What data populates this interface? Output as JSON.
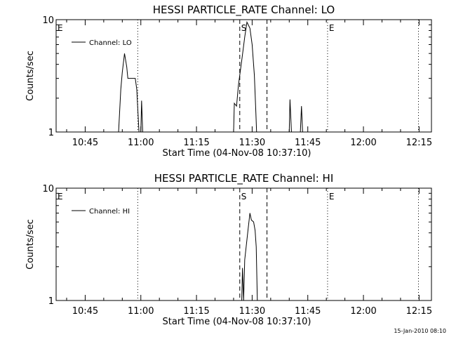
{
  "chart_data": [
    {
      "type": "line",
      "title": "HESSI PARTICLE_RATE Channel: LO",
      "xlabel": "Start Time (04-Nov-08 10:37:10)",
      "ylabel": "Counts/sec",
      "y_scale": "log",
      "ylim": [
        1,
        10
      ],
      "y_ticks": [
        "1",
        "10"
      ],
      "xlim": [
        "10:37:10",
        "12:18:20"
      ],
      "x_ticks": [
        "10:45",
        "11:00",
        "11:15",
        "11:30",
        "11:45",
        "12:00",
        "12:15"
      ],
      "grid": false,
      "legend": {
        "position": "top-left",
        "entries": [
          "Channel: LO"
        ]
      },
      "series": [
        {
          "name": "Channel: LO",
          "points": [
            [
              "10:37:10",
              1
            ],
            [
              "10:54:00",
              1
            ],
            [
              "10:54:36",
              2.4
            ],
            [
              "10:55:00",
              3.4
            ],
            [
              "10:55:36",
              5.0
            ],
            [
              "10:56:12",
              3.8
            ],
            [
              "10:56:30",
              3.0
            ],
            [
              "10:58:30",
              3.0
            ],
            [
              "10:58:54",
              2.4
            ],
            [
              "10:59:30",
              1
            ],
            [
              "11:00:00",
              1
            ],
            [
              "11:00:12",
              1.9
            ],
            [
              "11:00:30",
              1
            ],
            [
              "11:25:00",
              1
            ],
            [
              "11:25:12",
              1.8
            ],
            [
              "11:25:48",
              1.7
            ],
            [
              "11:26:18",
              2.6
            ],
            [
              "11:27:18",
              4.6
            ],
            [
              "11:28:00",
              7.0
            ],
            [
              "11:28:36",
              9.5
            ],
            [
              "11:29:24",
              8.4
            ],
            [
              "11:30:00",
              6.0
            ],
            [
              "11:30:36",
              3.2
            ],
            [
              "11:31:00",
              1.5
            ],
            [
              "11:31:12",
              1
            ],
            [
              "11:40:00",
              1
            ],
            [
              "11:40:12",
              1.95
            ],
            [
              "11:40:36",
              1
            ],
            [
              "11:43:00",
              1
            ],
            [
              "11:43:18",
              1.7
            ],
            [
              "11:43:36",
              1
            ],
            [
              "12:18:20",
              1
            ]
          ]
        }
      ],
      "annotations": [
        {
          "text": "E",
          "x": "10:37:10",
          "line": "dotted"
        },
        {
          "text": "",
          "x": "10:59:10",
          "line": "dotted"
        },
        {
          "text": "S",
          "x": "11:26:40",
          "line": "dashed"
        },
        {
          "text": "",
          "x": "11:34:00",
          "line": "dashed"
        },
        {
          "text": "E",
          "x": "11:50:20",
          "line": "dotted"
        },
        {
          "text": "",
          "x": "12:14:50",
          "line": "dotted"
        }
      ]
    },
    {
      "type": "line",
      "title": "HESSI PARTICLE_RATE Channel: HI",
      "xlabel": "Start Time (04-Nov-08 10:37:10)",
      "ylabel": "Counts/sec",
      "y_scale": "log",
      "ylim": [
        1,
        10
      ],
      "y_ticks": [
        "1",
        "10"
      ],
      "xlim": [
        "10:37:10",
        "12:18:20"
      ],
      "x_ticks": [
        "10:45",
        "11:00",
        "11:15",
        "11:30",
        "11:45",
        "12:00",
        "12:15"
      ],
      "grid": false,
      "legend": {
        "position": "top-left",
        "entries": [
          "Channel: HI"
        ]
      },
      "series": [
        {
          "name": "Channel: HI",
          "points": [
            [
              "10:37:10",
              1
            ],
            [
              "11:27:12",
              1
            ],
            [
              "11:27:24",
              1.95
            ],
            [
              "11:27:42",
              1
            ],
            [
              "11:28:00",
              2.3
            ],
            [
              "11:28:48",
              4.0
            ],
            [
              "11:29:24",
              6.0
            ],
            [
              "11:29:48",
              5.2
            ],
            [
              "11:30:24",
              5.0
            ],
            [
              "11:30:48",
              4.2
            ],
            [
              "11:31:06",
              3.0
            ],
            [
              "11:31:24",
              1
            ],
            [
              "12:18:20",
              1
            ]
          ]
        }
      ],
      "annotations": [
        {
          "text": "E",
          "x": "10:37:10",
          "line": "dotted"
        },
        {
          "text": "",
          "x": "10:59:10",
          "line": "dotted"
        },
        {
          "text": "S",
          "x": "11:26:40",
          "line": "dashed"
        },
        {
          "text": "",
          "x": "11:34:00",
          "line": "dashed"
        },
        {
          "text": "E",
          "x": "11:50:20",
          "line": "dotted"
        },
        {
          "text": "",
          "x": "12:14:50",
          "line": "dotted"
        }
      ]
    }
  ],
  "footer": {
    "date_stamp": "15-Jan-2010 08:10"
  }
}
